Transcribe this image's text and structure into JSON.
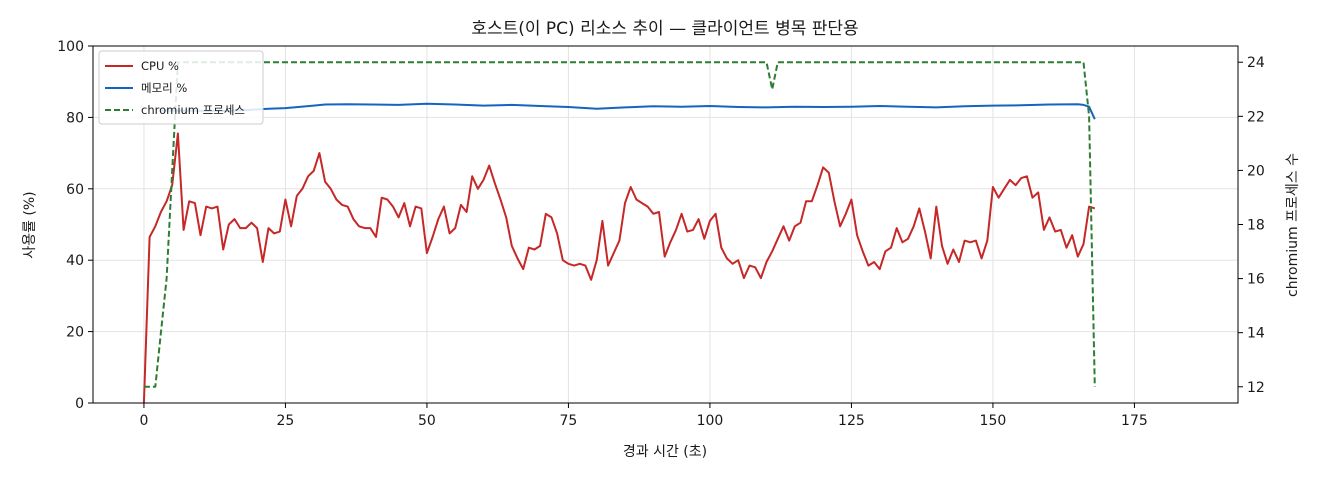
{
  "chart_data": {
    "type": "line",
    "title": "호스트(이 PC) 리소스 추이 — 클라이언트 병목 판단용",
    "xlabel": "경과 시간 (초)",
    "ylabel": "사용률 (%)",
    "y2label": "chromium 프로세스 수",
    "xlim": [
      -9,
      193.3
    ],
    "ylim": [
      0,
      100
    ],
    "y2lim": [
      11.4,
      24.6
    ],
    "xticks": [
      0,
      25,
      50,
      75,
      100,
      125,
      150,
      175
    ],
    "yticks": [
      0,
      20,
      40,
      60,
      80,
      100
    ],
    "y2ticks": [
      12,
      14,
      16,
      18,
      20,
      22,
      24
    ],
    "grid": true,
    "legend_position": "top-left",
    "series": [
      {
        "name": "CPU %",
        "axis": "left",
        "color": "#c62828",
        "style": "solid",
        "points": [
          [
            0,
            0
          ],
          [
            1,
            46.5
          ],
          [
            2,
            49.5
          ],
          [
            3,
            53.5
          ],
          [
            4,
            56.5
          ],
          [
            5,
            61
          ],
          [
            6,
            75.5
          ],
          [
            7,
            48.5
          ],
          [
            8,
            56.5
          ],
          [
            9,
            56
          ],
          [
            10,
            47
          ],
          [
            11,
            55
          ],
          [
            12,
            54.5
          ],
          [
            13,
            55
          ],
          [
            14,
            43
          ],
          [
            15,
            50
          ],
          [
            16,
            51.5
          ],
          [
            17,
            49
          ],
          [
            18,
            49
          ],
          [
            19,
            50.5
          ],
          [
            20,
            49
          ],
          [
            21,
            39.5
          ],
          [
            22,
            49
          ],
          [
            23,
            47.5
          ],
          [
            24,
            48
          ],
          [
            25,
            57
          ],
          [
            26,
            49.5
          ],
          [
            27,
            58
          ],
          [
            28,
            60
          ],
          [
            29,
            63.5
          ],
          [
            30,
            65
          ],
          [
            31,
            70
          ],
          [
            32,
            62
          ],
          [
            33,
            60
          ],
          [
            34,
            57
          ],
          [
            35,
            55.5
          ],
          [
            36,
            55
          ],
          [
            37,
            51.5
          ],
          [
            38,
            49.5
          ],
          [
            39,
            49
          ],
          [
            40,
            49
          ],
          [
            41,
            46.5
          ],
          [
            42,
            57.5
          ],
          [
            43,
            57
          ],
          [
            44,
            55
          ],
          [
            45,
            52
          ],
          [
            46,
            56
          ],
          [
            47,
            49.5
          ],
          [
            48,
            55
          ],
          [
            49,
            54.5
          ],
          [
            50,
            42
          ],
          [
            51,
            46.5
          ],
          [
            52,
            51.5
          ],
          [
            53,
            55
          ],
          [
            54,
            47.5
          ],
          [
            55,
            49
          ],
          [
            56,
            55.5
          ],
          [
            57,
            53.5
          ],
          [
            58,
            63.5
          ],
          [
            59,
            60
          ],
          [
            60,
            62.5
          ],
          [
            61,
            66.5
          ],
          [
            62,
            61.5
          ],
          [
            63,
            57
          ],
          [
            64,
            52
          ],
          [
            65,
            44
          ],
          [
            66,
            40.5
          ],
          [
            67,
            37.5
          ],
          [
            68,
            43.5
          ],
          [
            69,
            43
          ],
          [
            70,
            44
          ],
          [
            71,
            53
          ],
          [
            72,
            52
          ],
          [
            73,
            47.5
          ],
          [
            74,
            40
          ],
          [
            75,
            39
          ],
          [
            76,
            38.5
          ],
          [
            77,
            39
          ],
          [
            78,
            38.5
          ],
          [
            79,
            34.5
          ],
          [
            80,
            40
          ],
          [
            81,
            51
          ],
          [
            82,
            38.5
          ],
          [
            83,
            42
          ],
          [
            84,
            45.5
          ],
          [
            85,
            56
          ],
          [
            86,
            60.5
          ],
          [
            87,
            57
          ],
          [
            88,
            56
          ],
          [
            89,
            55
          ],
          [
            90,
            53
          ],
          [
            91,
            53.5
          ],
          [
            92,
            41
          ],
          [
            93,
            45
          ],
          [
            94,
            48.5
          ],
          [
            95,
            53
          ],
          [
            96,
            48
          ],
          [
            97,
            48.5
          ],
          [
            98,
            51.5
          ],
          [
            99,
            46
          ],
          [
            100,
            51
          ],
          [
            101,
            53
          ],
          [
            102,
            43.5
          ],
          [
            103,
            40.5
          ],
          [
            104,
            39
          ],
          [
            105,
            40
          ],
          [
            106,
            35
          ],
          [
            107,
            38.5
          ],
          [
            108,
            38
          ],
          [
            109,
            35
          ],
          [
            110,
            39.5
          ],
          [
            111,
            42.5
          ],
          [
            112,
            46
          ],
          [
            113,
            49.5
          ],
          [
            114,
            45.5
          ],
          [
            115,
            49.5
          ],
          [
            116,
            50.5
          ],
          [
            117,
            56.5
          ],
          [
            118,
            56.5
          ],
          [
            119,
            61
          ],
          [
            120,
            66
          ],
          [
            121,
            64.5
          ],
          [
            122,
            56.5
          ],
          [
            123,
            49.5
          ],
          [
            124,
            53
          ],
          [
            125,
            57
          ],
          [
            126,
            47
          ],
          [
            127,
            42.5
          ],
          [
            128,
            38.5
          ],
          [
            129,
            39.5
          ],
          [
            130,
            37.5
          ],
          [
            131,
            42.5
          ],
          [
            132,
            43.5
          ],
          [
            133,
            49
          ],
          [
            134,
            45
          ],
          [
            135,
            46
          ],
          [
            136,
            49.5
          ],
          [
            137,
            54.5
          ],
          [
            138,
            48
          ],
          [
            139,
            40.5
          ],
          [
            140,
            55
          ],
          [
            141,
            44
          ],
          [
            142,
            39
          ],
          [
            143,
            43
          ],
          [
            144,
            39.5
          ],
          [
            145,
            45.5
          ],
          [
            146,
            45
          ],
          [
            147,
            45.5
          ],
          [
            148,
            40.5
          ],
          [
            149,
            45.5
          ],
          [
            150,
            60.5
          ],
          [
            151,
            57.5
          ],
          [
            152,
            60
          ],
          [
            153,
            62.5
          ],
          [
            154,
            61
          ],
          [
            155,
            63
          ],
          [
            156,
            63.5
          ],
          [
            157,
            57.5
          ],
          [
            158,
            59
          ],
          [
            159,
            48.5
          ],
          [
            160,
            52
          ],
          [
            161,
            48
          ],
          [
            162,
            48.5
          ],
          [
            163,
            43.5
          ],
          [
            164,
            47
          ],
          [
            165,
            41
          ],
          [
            166,
            44.5
          ],
          [
            167,
            55
          ],
          [
            168,
            54.5
          ]
        ]
      },
      {
        "name": "메모리 %",
        "axis": "left",
        "color": "#1565c0",
        "style": "solid",
        "points": [
          [
            3,
            81.9
          ],
          [
            15,
            81.8
          ],
          [
            22,
            82.4
          ],
          [
            25,
            82.6
          ],
          [
            30,
            83.3
          ],
          [
            32,
            83.6
          ],
          [
            36,
            83.7
          ],
          [
            40,
            83.6
          ],
          [
            45,
            83.5
          ],
          [
            50,
            83.8
          ],
          [
            55,
            83.6
          ],
          [
            60,
            83.3
          ],
          [
            65,
            83.5
          ],
          [
            70,
            83.2
          ],
          [
            75,
            82.9
          ],
          [
            80,
            82.4
          ],
          [
            85,
            82.8
          ],
          [
            90,
            83.1
          ],
          [
            95,
            83.0
          ],
          [
            100,
            83.2
          ],
          [
            105,
            82.9
          ],
          [
            110,
            82.8
          ],
          [
            115,
            83.0
          ],
          [
            120,
            82.9
          ],
          [
            125,
            83.0
          ],
          [
            130,
            83.2
          ],
          [
            135,
            83.0
          ],
          [
            140,
            82.8
          ],
          [
            145,
            83.1
          ],
          [
            150,
            83.3
          ],
          [
            155,
            83.4
          ],
          [
            160,
            83.6
          ],
          [
            165,
            83.7
          ],
          [
            166,
            83.5
          ],
          [
            167,
            83.0
          ],
          [
            168,
            79.5
          ]
        ]
      },
      {
        "name": "chromium 프로세스",
        "axis": "right",
        "color": "#2e7d32",
        "style": "dashed",
        "points": [
          [
            0,
            12
          ],
          [
            2,
            12
          ],
          [
            3,
            14
          ],
          [
            4,
            16
          ],
          [
            5,
            20
          ],
          [
            6,
            24
          ],
          [
            110,
            24
          ],
          [
            111,
            23
          ],
          [
            112,
            24
          ],
          [
            166,
            24
          ],
          [
            167,
            22
          ],
          [
            168,
            12
          ]
        ]
      }
    ]
  }
}
